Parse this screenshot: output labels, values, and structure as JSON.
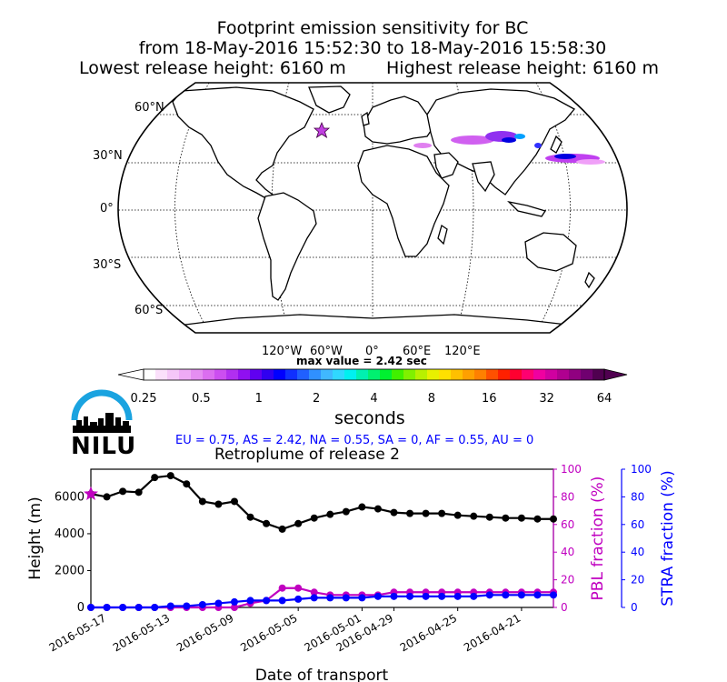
{
  "header": {
    "title": "Footprint emission sensitivity for BC",
    "period": "from 18-May-2016 15:52:30 to 18-May-2016 15:58:30",
    "lowest_release": "Lowest release height: 6160 m",
    "highest_release": "Highest release height: 6160 m"
  },
  "map": {
    "lat_labels": [
      "60°N",
      "30°N",
      "0°",
      "30°S",
      "60°S"
    ],
    "lon_labels": [
      "120°W",
      "60°W",
      "0°",
      "60°E",
      "120°E"
    ],
    "max_value": "max value = 2.42 sec"
  },
  "colorbar": {
    "tick_labels": [
      "0.25",
      "0.5",
      "1",
      "2",
      "4",
      "8",
      "16",
      "32",
      "64"
    ],
    "unit": "seconds"
  },
  "logo": {
    "text": "NILU"
  },
  "fractions_text": "EU = 0.75,  AS = 2.42,  NA = 0.55,  SA = 0,  AF = 0.55,  AU = 0",
  "chart_data": {
    "type": "line",
    "title": "Retroplume of release 2",
    "xlabel": "Date of transport",
    "ylabel": "Height (m)",
    "y2label": "PBL fraction (%)",
    "y3label": "STRA fraction (%)",
    "x_tick_labels": [
      "2016-05-17",
      "2016-05-13",
      "2016-05-09",
      "2016-05-05",
      "2016-05-01",
      "2016-04-29",
      "2016-04-25",
      "2016-04-21"
    ],
    "x_ticks": [
      "2016-05-17",
      "2016-05-13",
      "2016-05-09",
      "2016-05-05",
      "2016-05-01",
      "2016-04-29",
      "2016-04-25",
      "2016-04-21"
    ],
    "xlim": [
      "2016-05-18",
      "2016-04-19"
    ],
    "ylim": [
      0,
      7500
    ],
    "y_ticks": [
      0,
      2000,
      4000,
      6000
    ],
    "y2lim": [
      0,
      100
    ],
    "y2_ticks": [
      0,
      20,
      40,
      60,
      80,
      100
    ],
    "y3lim": [
      0,
      100
    ],
    "y3_ticks": [
      0,
      20,
      40,
      60,
      80,
      100
    ],
    "x": [
      "2016-05-18",
      "2016-05-17",
      "2016-05-16",
      "2016-05-15",
      "2016-05-14",
      "2016-05-13",
      "2016-05-12",
      "2016-05-11",
      "2016-05-10",
      "2016-05-09",
      "2016-05-08",
      "2016-05-07",
      "2016-05-06",
      "2016-05-05",
      "2016-05-04",
      "2016-05-03",
      "2016-05-02",
      "2016-05-01",
      "2016-04-30",
      "2016-04-29",
      "2016-04-28",
      "2016-04-27",
      "2016-04-26",
      "2016-04-25",
      "2016-04-24",
      "2016-04-23",
      "2016-04-22",
      "2016-04-21",
      "2016-04-20",
      "2016-04-19"
    ],
    "series": [
      {
        "name": "Height",
        "axis": "left",
        "color": "#000000",
        "values": [
          6160,
          6000,
          6300,
          6250,
          7050,
          7150,
          6700,
          5750,
          5600,
          5750,
          4900,
          4550,
          4250,
          4550,
          4850,
          5050,
          5200,
          5450,
          5350,
          5150,
          5100,
          5100,
          5100,
          5000,
          4950,
          4900,
          4850,
          4850,
          4800,
          4800
        ]
      },
      {
        "name": "PBL fraction",
        "axis": "right1",
        "color": "#c000c0",
        "values": [
          0,
          0,
          0,
          0,
          0,
          0,
          0,
          0,
          0,
          0,
          3,
          5,
          14,
          14,
          11,
          9,
          9,
          9,
          9,
          11,
          11,
          11,
          11,
          11,
          11,
          11,
          11,
          11,
          11,
          11
        ]
      },
      {
        "name": "STRA fraction",
        "axis": "right2",
        "color": "#0000ff",
        "values": [
          0,
          0,
          0,
          0,
          0,
          1,
          1,
          2,
          3,
          4,
          5,
          5,
          5,
          6,
          7,
          7,
          7,
          7,
          8,
          8,
          8,
          8,
          8,
          8,
          8,
          9,
          9,
          9,
          9,
          9
        ]
      }
    ]
  },
  "colors": {
    "height_line": "#000000",
    "pbl_axis": "#c000c0",
    "stra_axis": "#0000ff",
    "logo_arc": "#1aa3e0",
    "release_marker": "#c000c0"
  }
}
